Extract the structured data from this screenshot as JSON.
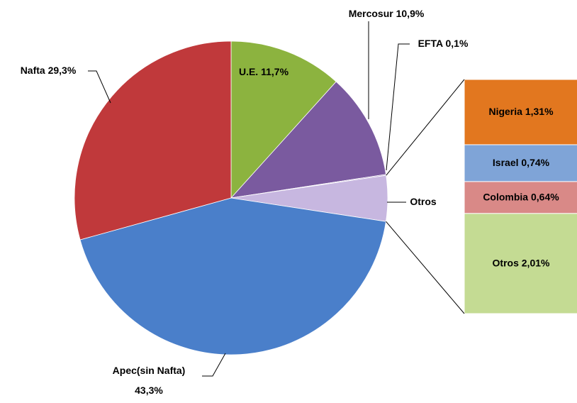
{
  "chart_data": {
    "type": "pie-of-bar",
    "categories": [
      "U.E.",
      "Mercosur",
      "EFTA",
      "Otros",
      "Apec(sin Nafta)",
      "Nafta"
    ],
    "values": [
      11.7,
      10.9,
      0.1,
      4.7,
      43.3,
      29.3
    ],
    "value_labels": [
      "11,7%",
      "10,9%",
      "0,1%",
      null,
      "43,3%",
      "29,3%"
    ],
    "colors": [
      "#8cb33f",
      "#7a5a9f",
      "#9b7fc0",
      "#c7b7e0",
      "#4a7fca",
      "#c0393b"
    ],
    "breakdown": {
      "categories": [
        "Nigeria",
        "Israel",
        "Colombia",
        "Otros"
      ],
      "values": [
        1.31,
        0.74,
        0.64,
        2.01
      ],
      "value_labels": [
        "1,31%",
        "0,74%",
        "0,64%",
        "2,01%"
      ],
      "colors": [
        "#e2771f",
        "#7fa4d7",
        "#d98987",
        "#c4db93"
      ]
    }
  }
}
